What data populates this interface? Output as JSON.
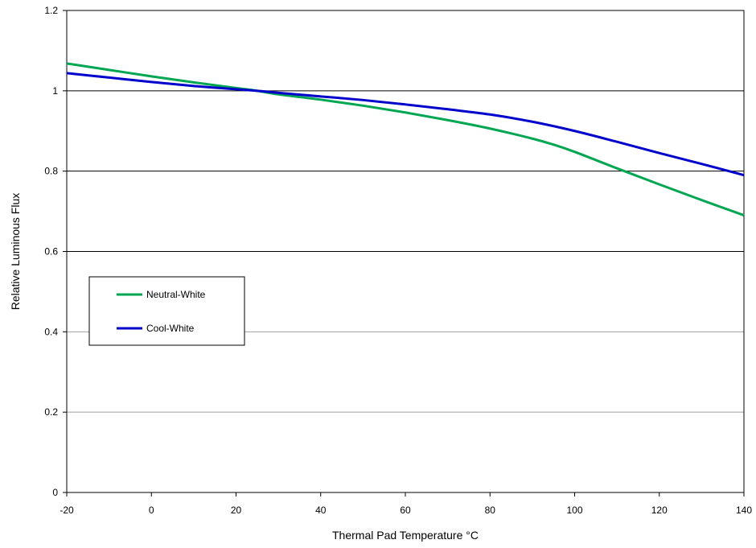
{
  "chart_data": {
    "type": "line",
    "xlabel": "Thermal Pad Temperature °C",
    "ylabel": "Relative Luminous Flux",
    "xlim": [
      -20,
      140
    ],
    "ylim": [
      0,
      1.2
    ],
    "x_ticks": [
      "-20",
      "0",
      "20",
      "40",
      "60",
      "80",
      "100",
      "120",
      "140"
    ],
    "y_ticks": [
      "0",
      "0.2",
      "0.4",
      "0.6",
      "0.8",
      "1",
      "1.2"
    ],
    "grid": "horizontal",
    "legend_position": "left",
    "series": [
      {
        "name": "Neutral-White",
        "color": "#00a651",
        "x": [
          -20,
          -10,
          0,
          10,
          20,
          25,
          30,
          40,
          50,
          60,
          70,
          80,
          90,
          95,
          100,
          110,
          120,
          130,
          140
        ],
        "y": [
          1.068,
          1.052,
          1.036,
          1.021,
          1.007,
          1.0,
          0.991,
          0.978,
          0.963,
          0.946,
          0.927,
          0.906,
          0.881,
          0.866,
          0.848,
          0.807,
          0.767,
          0.728,
          0.69
        ]
      },
      {
        "name": "Cool-White",
        "color": "#0000cc",
        "x": [
          -20,
          -10,
          0,
          10,
          20,
          25,
          30,
          40,
          50,
          60,
          70,
          80,
          90,
          100,
          110,
          120,
          130,
          140
        ],
        "y": [
          1.044,
          1.033,
          1.022,
          1.012,
          1.004,
          1.0,
          0.995,
          0.986,
          0.977,
          0.966,
          0.954,
          0.941,
          0.923,
          0.9,
          0.873,
          0.845,
          0.818,
          0.79
        ]
      }
    ]
  }
}
